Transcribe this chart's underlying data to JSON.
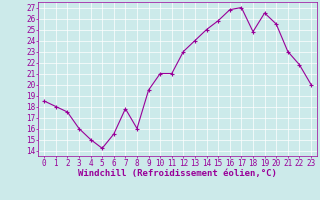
{
  "x": [
    0,
    1,
    2,
    3,
    4,
    5,
    6,
    7,
    8,
    9,
    10,
    11,
    12,
    13,
    14,
    15,
    16,
    17,
    18,
    19,
    20,
    21,
    22,
    23
  ],
  "y": [
    18.5,
    18.0,
    17.5,
    16.0,
    15.0,
    14.2,
    15.5,
    17.8,
    16.0,
    19.5,
    21.0,
    21.0,
    23.0,
    24.0,
    25.0,
    25.8,
    26.8,
    27.0,
    24.8,
    26.5,
    25.5,
    23.0,
    21.8,
    20.0
  ],
  "line_color": "#990099",
  "marker": "+",
  "marker_size": 3,
  "xlim": [
    -0.5,
    23.5
  ],
  "ylim": [
    13.5,
    27.5
  ],
  "yticks": [
    14,
    15,
    16,
    17,
    18,
    19,
    20,
    21,
    22,
    23,
    24,
    25,
    26,
    27
  ],
  "xticks": [
    0,
    1,
    2,
    3,
    4,
    5,
    6,
    7,
    8,
    9,
    10,
    11,
    12,
    13,
    14,
    15,
    16,
    17,
    18,
    19,
    20,
    21,
    22,
    23
  ],
  "bg_color": "#cceaea",
  "grid_color": "#ffffff",
  "tick_color": "#990099",
  "label_color": "#990099",
  "tick_fontsize": 5.5,
  "xlabel": "Windchill (Refroidissement éolien,°C)",
  "xlabel_fontsize": 6.5,
  "linewidth": 0.8,
  "markeredgewidth": 0.8
}
